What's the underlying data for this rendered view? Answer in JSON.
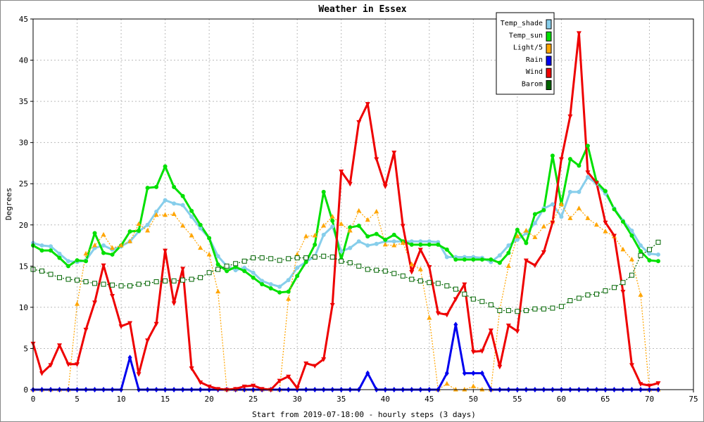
{
  "chart_data": {
    "type": "line",
    "title": "Weather in Essex",
    "x_label": "Start from 2019-07-18:00 - hourly steps (3 days)",
    "y_label": "Degrees",
    "x": [
      0,
      1,
      2,
      3,
      4,
      5,
      6,
      7,
      8,
      9,
      10,
      11,
      12,
      13,
      14,
      15,
      16,
      17,
      18,
      19,
      20,
      21,
      22,
      23,
      24,
      25,
      26,
      27,
      28,
      29,
      30,
      31,
      32,
      33,
      34,
      35,
      36,
      37,
      38,
      39,
      40,
      41,
      42,
      43,
      44,
      45,
      46,
      47,
      48,
      49,
      50,
      51,
      52,
      53,
      54,
      55,
      56,
      57,
      58,
      59,
      60,
      61,
      62,
      63,
      64,
      65,
      66,
      67,
      68,
      69,
      70,
      71
    ],
    "xlim": [
      0,
      75
    ],
    "xticks": [
      0,
      5,
      10,
      15,
      20,
      25,
      30,
      35,
      40,
      45,
      50,
      55,
      60,
      65,
      70,
      75
    ],
    "ylim": [
      0,
      45
    ],
    "yticks": [
      0,
      5,
      10,
      15,
      20,
      25,
      30,
      35,
      40,
      45
    ],
    "grid": true,
    "legend": "top-right",
    "series": [
      {
        "name": "Temp_shade",
        "color": "#87ceeb",
        "line_style": "solid",
        "marker": "circle",
        "values": [
          17.8,
          17.5,
          17.4,
          16.5,
          15.6,
          15.5,
          15.7,
          17.2,
          17.5,
          17.0,
          17.4,
          18.0,
          19.2,
          20.0,
          21.6,
          23.0,
          22.6,
          22.4,
          21.0,
          19.6,
          18.4,
          16.2,
          15.0,
          14.5,
          14.8,
          14.2,
          13.2,
          12.8,
          12.5,
          13.3,
          14.8,
          15.5,
          16.2,
          18.8,
          19.8,
          16.8,
          17.2,
          18.0,
          17.5,
          17.7,
          18.0,
          18.0,
          18.0,
          18.0,
          18.0,
          18.0,
          17.9,
          16.1,
          16.1,
          16.1,
          16.1,
          16.0,
          15.5,
          16.3,
          17.5,
          18.2,
          19.0,
          20.2,
          22.0,
          22.5,
          21.0,
          24.0,
          24.0,
          25.8,
          25.0,
          23.8,
          22.0,
          20.5,
          19.3,
          17.5,
          16.5,
          16.4
        ]
      },
      {
        "name": "Temp_sun",
        "color": "#00e000",
        "line_style": "solid",
        "marker": "circle",
        "values": [
          17.5,
          16.9,
          16.9,
          16.0,
          15.0,
          15.7,
          15.6,
          19.0,
          16.6,
          16.4,
          17.5,
          19.2,
          19.3,
          24.5,
          24.6,
          27.1,
          24.6,
          23.5,
          21.7,
          20.0,
          18.4,
          15.2,
          14.4,
          14.9,
          14.4,
          13.6,
          12.8,
          12.3,
          11.8,
          11.9,
          13.8,
          15.5,
          17.6,
          24.0,
          20.5,
          15.8,
          19.7,
          19.9,
          18.6,
          18.9,
          18.2,
          18.8,
          18.0,
          17.6,
          17.6,
          17.6,
          17.6,
          17.0,
          15.8,
          15.8,
          15.8,
          15.8,
          15.8,
          15.4,
          16.6,
          19.4,
          17.8,
          21.3,
          21.8,
          28.4,
          22.5,
          28.0,
          27.2,
          29.6,
          25.2,
          24.1,
          21.9,
          20.4,
          18.7,
          16.8,
          15.7,
          15.6
        ]
      },
      {
        "name": "Light/5",
        "color": "#ffa500",
        "line_style": "dotted",
        "marker": "triangle-up",
        "values": [
          0,
          0,
          0,
          0,
          0,
          10.4,
          16.5,
          17.5,
          18.8,
          17.2,
          17.5,
          18.0,
          20.1,
          19.3,
          21.2,
          21.2,
          21.3,
          19.9,
          18.7,
          17.2,
          16.4,
          11.9,
          0,
          0,
          0,
          0,
          0,
          0,
          0,
          11.0,
          16.4,
          18.6,
          18.7,
          19.9,
          21.0,
          20.1,
          19.3,
          21.7,
          20.6,
          21.6,
          17.6,
          17.5,
          17.8,
          15.2,
          14.6,
          8.7,
          0,
          0.7,
          0,
          0,
          0.4,
          0,
          0,
          9.7,
          15.0,
          18.6,
          19.3,
          18.5,
          19.8,
          20.4,
          22.5,
          20.8,
          22.0,
          20.8,
          20.0,
          19.2,
          18.6,
          17.0,
          15.8,
          11.5,
          0,
          0
        ]
      },
      {
        "name": "Rain",
        "color": "#0000ee",
        "line_style": "solid",
        "marker": "diamond",
        "values": [
          0,
          0,
          0,
          0,
          0,
          0,
          0,
          0,
          0,
          0,
          0,
          3.9,
          0,
          0,
          0,
          0,
          0,
          0,
          0,
          0,
          0,
          0,
          0,
          0,
          0,
          0,
          0,
          0,
          0,
          0,
          0,
          0,
          0,
          0,
          0,
          0,
          0,
          0,
          2.0,
          0,
          0,
          0,
          0,
          0,
          0,
          0,
          0,
          2.0,
          7.9,
          2.0,
          2.0,
          2.0,
          0,
          0,
          0,
          0,
          0,
          0,
          0,
          0,
          0,
          0,
          0,
          0,
          0,
          0,
          0,
          0,
          0,
          0,
          0,
          0
        ]
      },
      {
        "name": "Wind",
        "color": "#ee0000",
        "line_style": "solid",
        "marker": "triangle-down",
        "values": [
          5.6,
          2.0,
          3.0,
          5.4,
          3.1,
          3.1,
          7.3,
          10.6,
          15.1,
          11.4,
          7.7,
          8.1,
          1.9,
          6.0,
          8.0,
          16.9,
          10.5,
          14.7,
          2.6,
          0.9,
          0.4,
          0.1,
          0,
          0.1,
          0.4,
          0.5,
          0.1,
          0,
          1.1,
          1.6,
          0.2,
          3.2,
          2.9,
          3.7,
          10.3,
          26.5,
          25.0,
          32.5,
          34.7,
          28.0,
          24.7,
          28.8,
          19.9,
          14.3,
          17.0,
          14.9,
          9.3,
          9.1,
          11.0,
          12.8,
          4.6,
          4.7,
          7.2,
          2.8,
          7.8,
          7.1,
          15.7,
          15.1,
          16.7,
          20.3,
          28.0,
          33.2,
          43.3,
          26.4,
          25.1,
          20.3,
          18.7,
          11.9,
          3.0,
          0.7,
          0.5,
          0.8
        ]
      },
      {
        "name": "Barom",
        "color": "#006400",
        "line_style": "dotted",
        "marker": "square-open",
        "values": [
          14.6,
          14.4,
          14.0,
          13.6,
          13.4,
          13.3,
          13.1,
          12.9,
          12.8,
          12.7,
          12.6,
          12.6,
          12.8,
          12.9,
          13.1,
          13.2,
          13.2,
          13.3,
          13.4,
          13.6,
          14.2,
          14.6,
          15.0,
          15.3,
          15.6,
          16.0,
          16.0,
          15.9,
          15.7,
          15.9,
          16.0,
          16.0,
          16.1,
          16.2,
          16.1,
          15.6,
          15.4,
          15.0,
          14.6,
          14.5,
          14.4,
          14.1,
          13.8,
          13.4,
          13.2,
          13.0,
          12.9,
          12.6,
          12.2,
          11.6,
          11.0,
          10.7,
          10.3,
          9.6,
          9.6,
          9.5,
          9.6,
          9.8,
          9.8,
          9.9,
          10.1,
          10.8,
          11.1,
          11.5,
          11.6,
          12.0,
          12.4,
          13.0,
          13.9,
          16.3,
          17.0,
          17.9
        ]
      }
    ]
  }
}
